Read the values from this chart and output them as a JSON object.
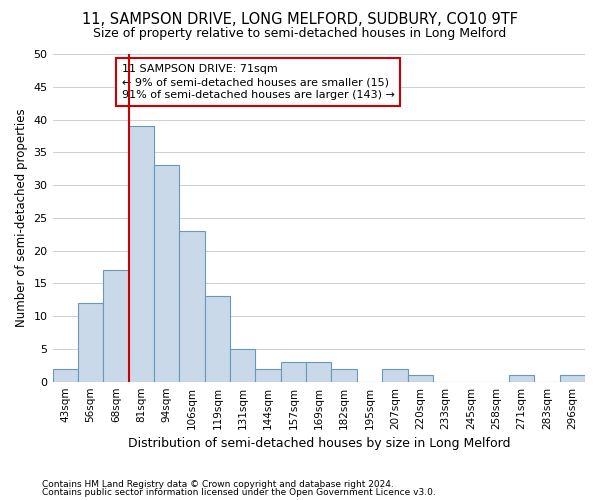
{
  "title": "11, SAMPSON DRIVE, LONG MELFORD, SUDBURY, CO10 9TF",
  "subtitle": "Size of property relative to semi-detached houses in Long Melford",
  "xlabel": "Distribution of semi-detached houses by size in Long Melford",
  "ylabel": "Number of semi-detached properties",
  "footnote1": "Contains HM Land Registry data © Crown copyright and database right 2024.",
  "footnote2": "Contains public sector information licensed under the Open Government Licence v3.0.",
  "bar_labels": [
    "43sqm",
    "56sqm",
    "68sqm",
    "81sqm",
    "94sqm",
    "106sqm",
    "119sqm",
    "131sqm",
    "144sqm",
    "157sqm",
    "169sqm",
    "182sqm",
    "195sqm",
    "207sqm",
    "220sqm",
    "233sqm",
    "245sqm",
    "258sqm",
    "271sqm",
    "283sqm",
    "296sqm"
  ],
  "bar_values": [
    2,
    12,
    17,
    39,
    33,
    23,
    13,
    5,
    2,
    3,
    3,
    2,
    0,
    2,
    1,
    0,
    0,
    0,
    1,
    0,
    1
  ],
  "bar_color": "#c9d9ea",
  "bar_edge_color": "#6699bb",
  "ylim": [
    0,
    50
  ],
  "yticks": [
    0,
    5,
    10,
    15,
    20,
    25,
    30,
    35,
    40,
    45,
    50
  ],
  "red_line_color": "#cc0000",
  "annotation_text": "11 SAMPSON DRIVE: 71sqm\n← 9% of semi-detached houses are smaller (15)\n91% of semi-detached houses are larger (143) →",
  "annotation_box_color": "#ffffff",
  "annotation_box_edge": "#cc0000",
  "bg_color": "#ffffff",
  "grid_color": "#c8d0d8"
}
